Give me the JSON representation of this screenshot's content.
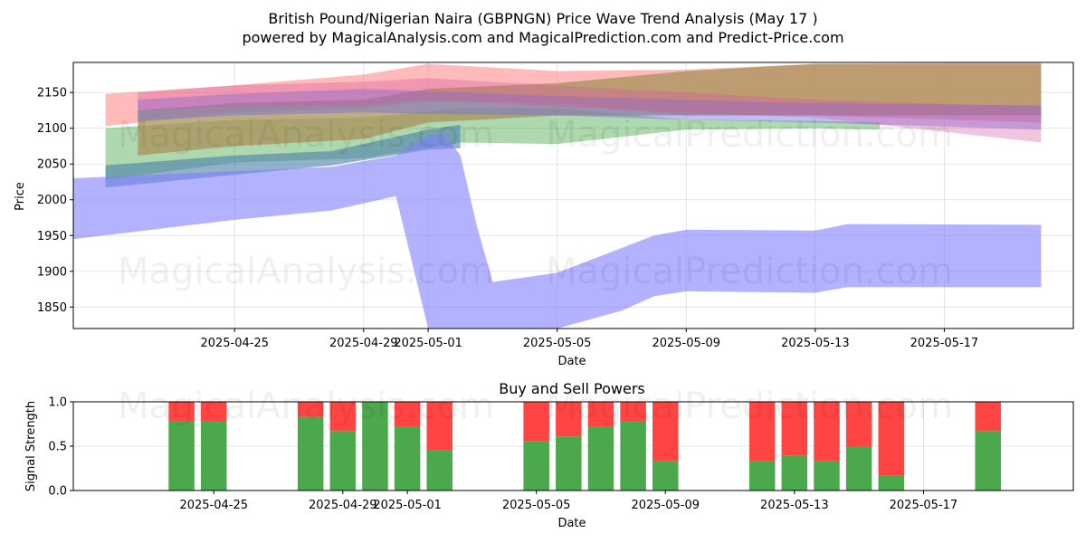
{
  "title_line1": "British Pound/Nigerian Naira (GBPNGN) Price Wave Trend Analysis (May 17 )",
  "title_line2": "powered by MagicalAnalysis.com and MagicalPrediction.com and Predict-Price.com",
  "watermarks": [
    "MagicalAnalysis.com",
    "MagicalPrediction.com"
  ],
  "colors": {
    "green": "#4ca84c",
    "red": "#ff4444",
    "blue": "#7f7fff"
  },
  "chart_data": [
    {
      "type": "area",
      "ylabel": "Price",
      "xlabel": "Date",
      "ylim": [
        1820,
        2192
      ],
      "xlim": [
        "2025-04-20",
        "2025-05-21"
      ],
      "yticks": [
        1850,
        1900,
        1950,
        2000,
        2050,
        2100,
        2150
      ],
      "xticks": [
        "2025-04-25",
        "2025-04-29",
        "2025-05-01",
        "2025-05-05",
        "2025-05-09",
        "2025-05-13",
        "2025-05-17"
      ],
      "grid": true,
      "bands": [
        {
          "color": "#4ca84c",
          "opacity": 0.45,
          "upper": [
            [
              "2025-04-21",
              2100
            ],
            [
              "2025-04-25",
              2112
            ],
            [
              "2025-04-29",
              2115
            ],
            [
              "2025-05-02",
              2128
            ],
            [
              "2025-05-05",
              2128
            ],
            [
              "2025-05-09",
              2112
            ],
            [
              "2025-05-13",
              2110
            ],
            [
              "2025-05-15",
              2108
            ]
          ],
          "lower": [
            [
              "2025-04-21",
              2028
            ],
            [
              "2025-04-25",
              2052
            ],
            [
              "2025-04-29",
              2058
            ],
            [
              "2025-05-02",
              2080
            ],
            [
              "2025-05-05",
              2078
            ],
            [
              "2025-05-09",
              2098
            ],
            [
              "2025-05-13",
              2100
            ],
            [
              "2025-05-15",
              2098
            ]
          ]
        },
        {
          "color": "#ff7777",
          "opacity": 0.5,
          "upper": [
            [
              "2025-04-21",
              2148
            ],
            [
              "2025-04-25",
              2160
            ],
            [
              "2025-04-29",
              2175
            ],
            [
              "2025-05-01",
              2190
            ],
            [
              "2025-05-05",
              2180
            ],
            [
              "2025-05-09",
              2182
            ],
            [
              "2025-05-13",
              2190
            ],
            [
              "2025-05-20",
              2192
            ]
          ],
          "lower": [
            [
              "2025-04-21",
              2103
            ],
            [
              "2025-04-25",
              2122
            ],
            [
              "2025-04-29",
              2128
            ],
            [
              "2025-05-01",
              2138
            ],
            [
              "2025-05-05",
              2135
            ],
            [
              "2025-05-09",
              2118
            ],
            [
              "2025-05-13",
              2118
            ],
            [
              "2025-05-20",
              2108
            ]
          ]
        },
        {
          "color": "#a8915a",
          "opacity": 0.75,
          "upper": [
            [
              "2025-04-22",
              2125
            ],
            [
              "2025-04-25",
              2135
            ],
            [
              "2025-04-29",
              2140
            ],
            [
              "2025-05-01",
              2155
            ],
            [
              "2025-05-05",
              2163
            ],
            [
              "2025-05-09",
              2180
            ],
            [
              "2025-05-13",
              2190
            ],
            [
              "2025-05-20",
              2190
            ]
          ],
          "lower": [
            [
              "2025-04-22",
              2062
            ],
            [
              "2025-04-25",
              2075
            ],
            [
              "2025-04-29",
              2085
            ],
            [
              "2025-05-01",
              2108
            ],
            [
              "2025-05-05",
              2118
            ],
            [
              "2025-05-09",
              2118
            ],
            [
              "2025-05-13",
              2118
            ],
            [
              "2025-05-20",
              2118
            ]
          ]
        },
        {
          "color": "#6f6fe0",
          "opacity": 0.45,
          "upper": [
            [
              "2025-04-22",
              2140
            ],
            [
              "2025-04-25",
              2148
            ],
            [
              "2025-04-29",
              2155
            ],
            [
              "2025-05-01",
              2152
            ],
            [
              "2025-05-05",
              2145
            ],
            [
              "2025-05-09",
              2140
            ],
            [
              "2025-05-13",
              2135
            ],
            [
              "2025-05-20",
              2132
            ]
          ],
          "lower": [
            [
              "2025-04-22",
              2110
            ],
            [
              "2025-04-25",
              2118
            ],
            [
              "2025-04-29",
              2122
            ],
            [
              "2025-05-01",
              2120
            ],
            [
              "2025-05-05",
              2118
            ],
            [
              "2025-05-09",
              2112
            ],
            [
              "2025-05-13",
              2108
            ],
            [
              "2025-05-20",
              2098
            ]
          ]
        },
        {
          "color": "#d45aa0",
          "opacity": 0.35,
          "upper": [
            [
              "2025-04-22",
              2150
            ],
            [
              "2025-04-25",
              2160
            ],
            [
              "2025-04-29",
              2165
            ],
            [
              "2025-05-01",
              2170
            ],
            [
              "2025-05-05",
              2160
            ],
            [
              "2025-05-09",
              2150
            ],
            [
              "2025-05-13",
              2140
            ],
            [
              "2025-05-20",
              2130
            ]
          ],
          "lower": [
            [
              "2025-04-22",
              2125
            ],
            [
              "2025-04-25",
              2130
            ],
            [
              "2025-04-29",
              2132
            ],
            [
              "2025-05-01",
              2140
            ],
            [
              "2025-05-05",
              2130
            ],
            [
              "2025-05-09",
              2122
            ],
            [
              "2025-05-13",
              2115
            ],
            [
              "2025-05-20",
              2080
            ]
          ]
        },
        {
          "color": "#4a7fa8",
          "opacity": 0.6,
          "upper": [
            [
              "2025-04-21",
              2048
            ],
            [
              "2025-04-25",
              2062
            ],
            [
              "2025-04-28",
              2068
            ],
            [
              "2025-05-01",
              2098
            ],
            [
              "2025-05-02",
              2105
            ]
          ],
          "lower": [
            [
              "2025-04-21",
              2017
            ],
            [
              "2025-04-25",
              2035
            ],
            [
              "2025-04-28",
              2048
            ],
            [
              "2025-05-01",
              2070
            ],
            [
              "2025-05-02",
              2072
            ]
          ]
        },
        {
          "color": "#7f7fff",
          "opacity": 0.6,
          "upper": [
            [
              "2025-04-20",
              2030
            ],
            [
              "2025-04-25",
              2040
            ],
            [
              "2025-04-28",
              2046
            ],
            [
              "2025-04-30",
              2062
            ],
            [
              "2025-05-01",
              2090
            ],
            [
              "2025-05-01T12",
              2092
            ],
            [
              "2025-05-02",
              2062
            ],
            [
              "2025-05-02T12",
              1965
            ],
            [
              "2025-05-03",
              1885
            ],
            [
              "2025-05-05",
              1898
            ],
            [
              "2025-05-08",
              1950
            ],
            [
              "2025-05-09",
              1958
            ],
            [
              "2025-05-13",
              1957
            ],
            [
              "2025-05-14",
              1966
            ],
            [
              "2025-05-20",
              1965
            ]
          ],
          "lower": [
            [
              "2025-04-20",
              1945
            ],
            [
              "2025-04-25",
              1972
            ],
            [
              "2025-04-28",
              1985
            ],
            [
              "2025-04-30",
              2005
            ],
            [
              "2025-05-01",
              1820
            ],
            [
              "2025-05-05",
              1820
            ],
            [
              "2025-05-07",
              1845
            ],
            [
              "2025-05-08",
              1865
            ],
            [
              "2025-05-09",
              1872
            ],
            [
              "2025-05-13",
              1870
            ],
            [
              "2025-05-14",
              1878
            ],
            [
              "2025-05-20",
              1878
            ]
          ]
        }
      ]
    },
    {
      "type": "bar",
      "title": "Buy and Sell Powers",
      "ylabel": "Signal Strength",
      "xlabel": "Date",
      "ylim": [
        0,
        1
      ],
      "yticks": [
        "0.0",
        "0.5",
        "1.0"
      ],
      "xticks": [
        "2025-04-25",
        "2025-04-29",
        "2025-05-01",
        "2025-05-05",
        "2025-05-09",
        "2025-05-13",
        "2025-05-17"
      ],
      "dates": [
        "2025-04-24",
        "2025-04-25",
        "2025-04-28",
        "2025-04-29",
        "2025-04-30",
        "2025-05-01",
        "2025-05-02",
        "2025-05-05",
        "2025-05-06",
        "2025-05-07",
        "2025-05-08",
        "2025-05-09",
        "2025-05-12",
        "2025-05-13",
        "2025-05-14",
        "2025-05-15",
        "2025-05-16",
        "2025-05-19"
      ],
      "series": [
        {
          "name": "buy",
          "color": "#4ca84c",
          "values": [
            0.78,
            0.78,
            0.83,
            0.67,
            1.0,
            0.72,
            0.45,
            0.56,
            0.61,
            0.72,
            0.78,
            0.33,
            0.33,
            0.39,
            0.33,
            0.5,
            0.17,
            0.67
          ]
        },
        {
          "name": "sell",
          "color": "#ff4444",
          "values": [
            0.22,
            0.22,
            0.17,
            0.33,
            0.0,
            0.28,
            0.55,
            0.44,
            0.39,
            0.28,
            0.22,
            0.67,
            0.67,
            0.61,
            0.67,
            0.5,
            0.83,
            0.33
          ]
        }
      ]
    }
  ]
}
